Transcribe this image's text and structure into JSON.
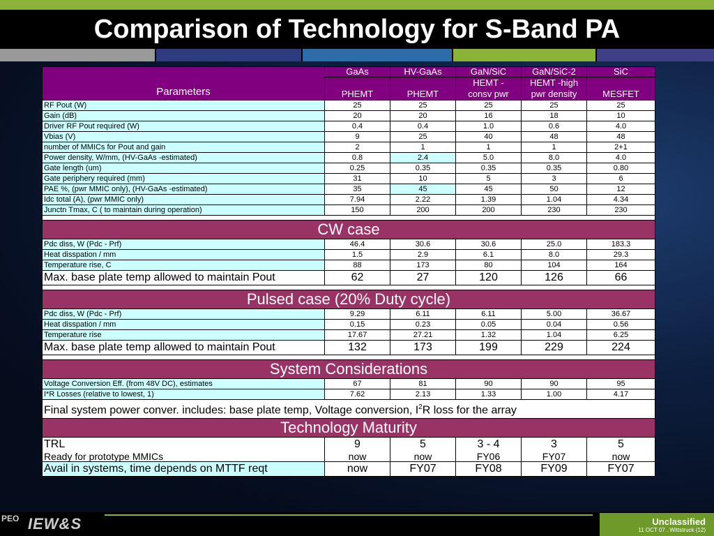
{
  "title": "Comparison of Technology for S-Band PA",
  "colors": {
    "accent_green": "#8bb33a",
    "header_purple": "#800080",
    "section_maroon": "#993366",
    "label_cyan": "#ccffff"
  },
  "table": {
    "param_header": "Parameters",
    "columns": [
      {
        "top": "GaAs",
        "bottom": "PHEMT"
      },
      {
        "top": "HV-GaAs",
        "bottom": "PHEMT"
      },
      {
        "top": "GaN/SiC",
        "bottom": "HEMT -\nconsv pwr"
      },
      {
        "top": "GaN/SiC-2",
        "bottom": "HEMT -high\npwr density"
      },
      {
        "top": "SiC",
        "bottom": "MESFET"
      }
    ],
    "rows": [
      {
        "label": "RF Pout (W)",
        "values": [
          "25",
          "25",
          "25",
          "25",
          "25"
        ]
      },
      {
        "label": "Gain (dB)",
        "values": [
          "20",
          "20",
          "16",
          "18",
          "10"
        ]
      },
      {
        "label": "Driver RF Pout required (W)",
        "values": [
          "0.4",
          "0.4",
          "1.0",
          "0.6",
          "4.0"
        ]
      },
      {
        "label": "Vbias (V)",
        "values": [
          "9",
          "25",
          "40",
          "48",
          "48"
        ]
      },
      {
        "label": "number of MMICs for Pout and gain",
        "values": [
          "2",
          "1",
          "1",
          "1",
          "2+1"
        ]
      },
      {
        "label": "Power density, W/mm, (HV-GaAs -estimated)",
        "values": [
          "0.8",
          "2.4",
          "5.0",
          "8.0",
          "4.0"
        ]
      },
      {
        "label": "Gate length (um)",
        "values": [
          "0.25",
          "0.35",
          "0.35",
          "0.35",
          "0.80"
        ]
      },
      {
        "label": "Gate periphery required (mm)",
        "values": [
          "31",
          "10",
          "5",
          "3",
          "6"
        ]
      },
      {
        "label": "PAE %, (pwr MMIC only), (HV-GaAs -estimated)",
        "values": [
          "35",
          "45",
          "45",
          "50",
          "12"
        ]
      },
      {
        "label": "Idc total (A),  (pwr MMIC only)",
        "values": [
          "7.94",
          "2.22",
          "1.39",
          "1.04",
          "4.34"
        ]
      },
      {
        "label": "Junctn Tmax, C ( to maintain during operation)",
        "values": [
          "150",
          "200",
          "200",
          "230",
          "230"
        ]
      }
    ]
  },
  "cw": {
    "heading": "CW case",
    "rows": [
      {
        "label": "Pdc diss, W (Pdc - Prf)",
        "values": [
          "46.4",
          "30.6",
          "30.6",
          "25.0",
          "183.3"
        ]
      },
      {
        "label": "Heat disspation / mm",
        "values": [
          "1.5",
          "2.9",
          "6.1",
          "8.0",
          "29.3"
        ]
      },
      {
        "label": "Temperature rise, C",
        "values": [
          "88",
          "173",
          "80",
          "104",
          "164"
        ]
      },
      {
        "label": "Max. base plate temp allowed to maintain Pout",
        "values": [
          "62",
          "27",
          "120",
          "126",
          "66"
        ]
      }
    ]
  },
  "pulsed": {
    "heading": "Pulsed case (20% Duty cycle)",
    "rows": [
      {
        "label": "Pdc diss, W (Pdc - Prf)",
        "values": [
          "9.29",
          "6.11",
          "6.11",
          "5.00",
          "36.67"
        ]
      },
      {
        "label": "Heat disspation / mm",
        "values": [
          "0.15",
          "0.23",
          "0.05",
          "0.04",
          "0.56"
        ]
      },
      {
        "label": "Temperature rise",
        "values": [
          "17.67",
          "27.21",
          "1.32",
          "1.04",
          "6.25"
        ]
      },
      {
        "label": "Max. base plate temp allowed to maintain Pout",
        "values": [
          "132",
          "173",
          "199",
          "229",
          "224"
        ]
      }
    ]
  },
  "system": {
    "heading": "System Considerations",
    "rows": [
      {
        "label": "Voltage Conversion Eff. (from 48V DC), estimates",
        "values": [
          "67",
          "81",
          "90",
          "90",
          "95"
        ]
      },
      {
        "label": "I*R Losses (relative to lowest, 1)",
        "values": [
          "7.62",
          "2.13",
          "1.33",
          "1.00",
          "4.17"
        ]
      }
    ],
    "note_pre": "Final system power conver. includes: base plate temp, Voltage conversion, I",
    "note_sup": "2",
    "note_post": "R loss for the array"
  },
  "maturity": {
    "heading": "Technology Maturity",
    "trl_label": "TRL",
    "trl_values": [
      "9",
      "5",
      "3 - 4",
      "3",
      "5"
    ],
    "ready_label": "Ready for prototype MMICs",
    "ready_values": [
      "now",
      "now",
      "FY06",
      "FY07",
      "now"
    ],
    "avail_label": "Avail in systems, time depends on MTTF reqt",
    "avail_values": [
      "now",
      "FY07",
      "FY08",
      "FY09",
      "FY07"
    ]
  },
  "footer": {
    "logo_peo": "PEO",
    "logo_iews": "IEW&S",
    "classification": "Unclassified",
    "date_line": "11 OCT 07 . Wittstruck  (12)"
  }
}
